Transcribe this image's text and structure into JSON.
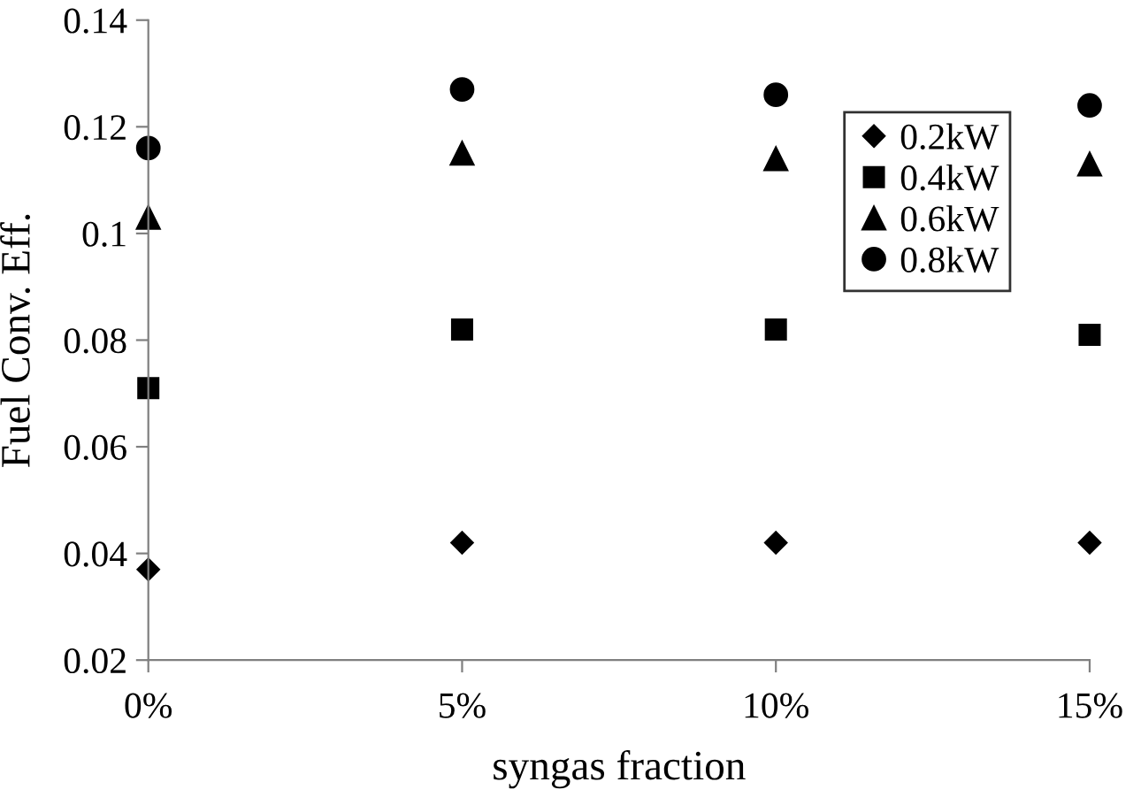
{
  "chart_data": {
    "type": "scatter",
    "xlabel": "syngas fraction",
    "ylabel": "Fuel Conv. Eff.",
    "categories": [
      "0%",
      "5%",
      "10%",
      "15%"
    ],
    "series": [
      {
        "name": "0.2kW",
        "color": "#000000",
        "marker": "diamond",
        "values": [
          0.037,
          0.042,
          0.042,
          0.042
        ]
      },
      {
        "name": "0.4kW",
        "color": "#000000",
        "marker": "square",
        "values": [
          0.071,
          0.082,
          0.082,
          0.081
        ]
      },
      {
        "name": "0.6kW",
        "color": "#000000",
        "marker": "triangle",
        "values": [
          0.103,
          0.115,
          0.114,
          0.113
        ]
      },
      {
        "name": "0.8kW",
        "color": "#000000",
        "marker": "circle",
        "values": [
          0.116,
          0.127,
          0.126,
          0.124
        ]
      }
    ],
    "ylim": [
      0.02,
      0.14
    ],
    "yticks": [
      0.02,
      0.04,
      0.06,
      0.08,
      0.1,
      0.12,
      0.14
    ],
    "grid": false,
    "legend": "top right"
  }
}
